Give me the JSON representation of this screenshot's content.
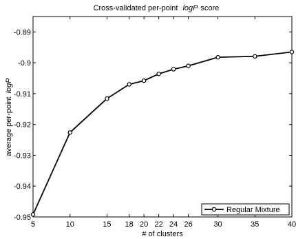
{
  "chart_data": {
    "type": "line",
    "title_pre": "Cross-validated per-point",
    "title_italic": "logP",
    "title_post": "score",
    "xlabel": "# of clusters",
    "ylabel_pre": "average per-point",
    "ylabel_italic": "logP",
    "xlim": [
      5,
      40
    ],
    "ylim": [
      -0.95,
      -0.885
    ],
    "xticks": [
      5,
      10,
      15,
      18,
      20,
      22,
      24,
      26,
      30,
      35,
      40
    ],
    "yticks": [
      -0.95,
      -0.94,
      -0.93,
      -0.92,
      -0.91,
      -0.9,
      -0.89
    ],
    "ytick_labels": [
      "-0.95",
      "-0.94",
      "-0.93",
      "-0.92",
      "-0.91",
      "-0.9",
      "-0.89"
    ],
    "legend_position": "bottom-right",
    "grid": false,
    "series": [
      {
        "name": "Regular Mixture",
        "color": "#000000",
        "marker": "circle",
        "x": [
          5,
          10,
          15,
          18,
          20,
          22,
          24,
          26,
          30,
          35,
          40
        ],
        "y": [
          -0.9492,
          -0.9226,
          -0.9116,
          -0.907,
          -0.9058,
          -0.9036,
          -0.9021,
          -0.901,
          -0.8982,
          -0.8979,
          -0.8965
        ]
      }
    ]
  }
}
